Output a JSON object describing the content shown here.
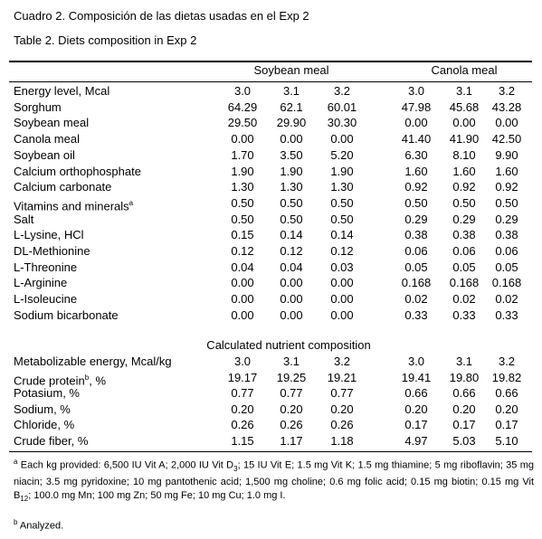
{
  "header": {
    "title_es": "Cuadro 2. Composición de las dietas usadas en el Exp 2",
    "title_en": "Table 2. Diets composition in Exp 2"
  },
  "table": {
    "groups": [
      "Soybean meal",
      "Canola meal"
    ],
    "rows": [
      {
        "label": "Energy level, Mcal",
        "values": [
          "3.0",
          "3.1",
          "3.2",
          "3.0",
          "3.1",
          "3.2"
        ]
      },
      {
        "label": "Sorghum",
        "values": [
          "64.29",
          "62.1",
          "60.01",
          "47.98",
          "45.68",
          "43.28"
        ]
      },
      {
        "label": "Soybean meal",
        "values": [
          "29.50",
          "29.90",
          "30.30",
          "0.00",
          "0.00",
          "0.00"
        ]
      },
      {
        "label": "Canola meal",
        "values": [
          "0.00",
          "0.00",
          "0.00",
          "41.40",
          "41.90",
          "42.50"
        ]
      },
      {
        "label": "Soybean oil",
        "values": [
          "1.70",
          "3.50",
          "5.20",
          "6.30",
          "8.10",
          "9.90"
        ]
      },
      {
        "label": "Calcium orthophosphate",
        "values": [
          "1.90",
          "1.90",
          "1.90",
          "1.60",
          "1.60",
          "1.60"
        ]
      },
      {
        "label": "Calcium carbonate",
        "values": [
          "1.30",
          "1.30",
          "1.30",
          "0.92",
          "0.92",
          "0.92"
        ]
      },
      {
        "label": "Vitamins and minerals",
        "sup": "a",
        "values": [
          "0.50",
          "0.50",
          "0.50",
          "0.50",
          "0.50",
          "0.50"
        ]
      },
      {
        "label": "Salt",
        "values": [
          "0.50",
          "0.50",
          "0.50",
          "0.29",
          "0.29",
          "0.29"
        ]
      },
      {
        "label": "L-Lysine, HCl",
        "values": [
          "0.15",
          "0.14",
          "0.14",
          "0.38",
          "0.38",
          "0.38"
        ]
      },
      {
        "label": "DL-Methionine",
        "values": [
          "0.12",
          "0.12",
          "0.12",
          "0.06",
          "0.06",
          "0.06"
        ]
      },
      {
        "label": "L-Threonine",
        "values": [
          "0.04",
          "0.04",
          "0.03",
          "0.05",
          "0.05",
          "0.05"
        ]
      },
      {
        "label": "L-Arginine",
        "values": [
          "0.00",
          "0.00",
          "0.00",
          "0.168",
          "0.168",
          "0.168"
        ]
      },
      {
        "label": "L-Isoleucine",
        "values": [
          "0.00",
          "0.00",
          "0.00",
          "0.02",
          "0.02",
          "0.02"
        ]
      },
      {
        "label": "Sodium bicarbonate",
        "values": [
          "0.00",
          "0.00",
          "0.00",
          "0.33",
          "0.33",
          "0.33"
        ]
      }
    ],
    "section_title": "Calculated nutrient composition",
    "nutrient_rows": [
      {
        "label": "Metabolizable energy, Mcal/kg",
        "values": [
          "3.0",
          "3.1",
          "3.2",
          "3.0",
          "3.1",
          "3.2"
        ]
      },
      {
        "label": "Crude protein",
        "sup": "b",
        "suffix": ", %",
        "values": [
          "19.17",
          "19.25",
          "19.21",
          "19.41",
          "19.80",
          "19.82"
        ]
      },
      {
        "label": "Potasium, %",
        "values": [
          "0.77",
          "0.77",
          "0.77",
          "0.66",
          "0.66",
          "0.66"
        ]
      },
      {
        "label": "Sodium, %",
        "values": [
          "0.20",
          "0.20",
          "0.20",
          "0.20",
          "0.20",
          "0.20"
        ]
      },
      {
        "label": "Chloride, %",
        "values": [
          "0.26",
          "0.26",
          "0.26",
          "0.17",
          "0.17",
          "0.17"
        ]
      },
      {
        "label": "Crude fiber, %",
        "values": [
          "1.15",
          "1.17",
          "1.18",
          "4.97",
          "5.03",
          "5.10"
        ]
      }
    ]
  },
  "footnotes": [
    {
      "mark": "a",
      "parts": [
        "Each kg provided: 6,500 IU Vit A; 2,000 IU Vit D",
        "3",
        "; 15 IU Vit E; 1.5 mg Vit K; 1.5 mg thiamine; 5 mg riboflavin; 35 mg niacin; 3.5 mg pyridoxine; 10 mg pantothenic acid; 1,500 mg choline; 0.6 mg folic acid; 0.15 mg biotin; 0.15 mg Vit B",
        "12",
        "; 100.0 mg Mn; 100 mg Zn; 50 mg Fe; 10 mg Cu; 1.0 mg I."
      ]
    },
    {
      "mark": "b",
      "parts": [
        "Analyzed."
      ]
    }
  ]
}
